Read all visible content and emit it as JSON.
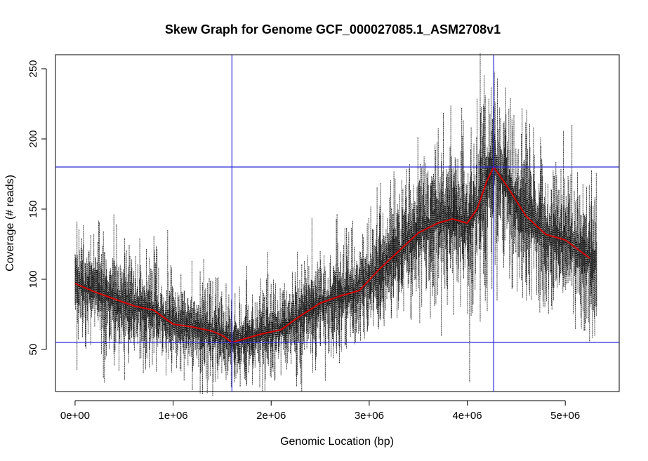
{
  "chart_data": {
    "type": "scatter",
    "title": "Skew Graph for Genome GCF_000027085.1_ASM2708v1",
    "xlabel": "Genomic Location (bp)",
    "ylabel": "Coverage (# reads)",
    "xlim": [
      -200000,
      5550000
    ],
    "ylim": [
      20,
      260
    ],
    "x_ticks": [
      {
        "value": 0,
        "label": "0e+00"
      },
      {
        "value": 1000000,
        "label": "1e+06"
      },
      {
        "value": 2000000,
        "label": "2e+06"
      },
      {
        "value": 3000000,
        "label": "3e+06"
      },
      {
        "value": 4000000,
        "label": "4e+06"
      },
      {
        "value": 5000000,
        "label": "5e+06"
      }
    ],
    "y_ticks": [
      {
        "value": 50,
        "label": "50"
      },
      {
        "value": 100,
        "label": "100"
      },
      {
        "value": 150,
        "label": "150"
      },
      {
        "value": 200,
        "label": "200"
      },
      {
        "value": 250,
        "label": "250"
      }
    ],
    "coverage_points": {
      "color": "#000000",
      "x_range": [
        0,
        5320000
      ],
      "step_bp": 4000,
      "noise_band": 14,
      "note_style": "dense vertical point strips around the smoothed trend"
    },
    "smoothed_trend": {
      "color": "#d40000",
      "x": [
        0,
        200000,
        400000,
        600000,
        800000,
        1000000,
        1200000,
        1400000,
        1500000,
        1600000,
        1700000,
        1900000,
        2100000,
        2300000,
        2500000,
        2700000,
        2900000,
        3100000,
        3300000,
        3500000,
        3700000,
        3850000,
        4000000,
        4100000,
        4200000,
        4270000,
        4400000,
        4600000,
        4800000,
        5000000,
        5250000
      ],
      "y": [
        97,
        91,
        86,
        81,
        78,
        68,
        66,
        63,
        60,
        55,
        57,
        61,
        64,
        74,
        83,
        88,
        92,
        107,
        120,
        133,
        140,
        143,
        140,
        150,
        170,
        180,
        167,
        145,
        132,
        128,
        115
      ]
    },
    "reference_lines": {
      "color": "#2a2ad8",
      "vertical_x": [
        1600000,
        4270000
      ],
      "horizontal_y": [
        55,
        180
      ]
    },
    "grid": false,
    "legend": "none"
  }
}
